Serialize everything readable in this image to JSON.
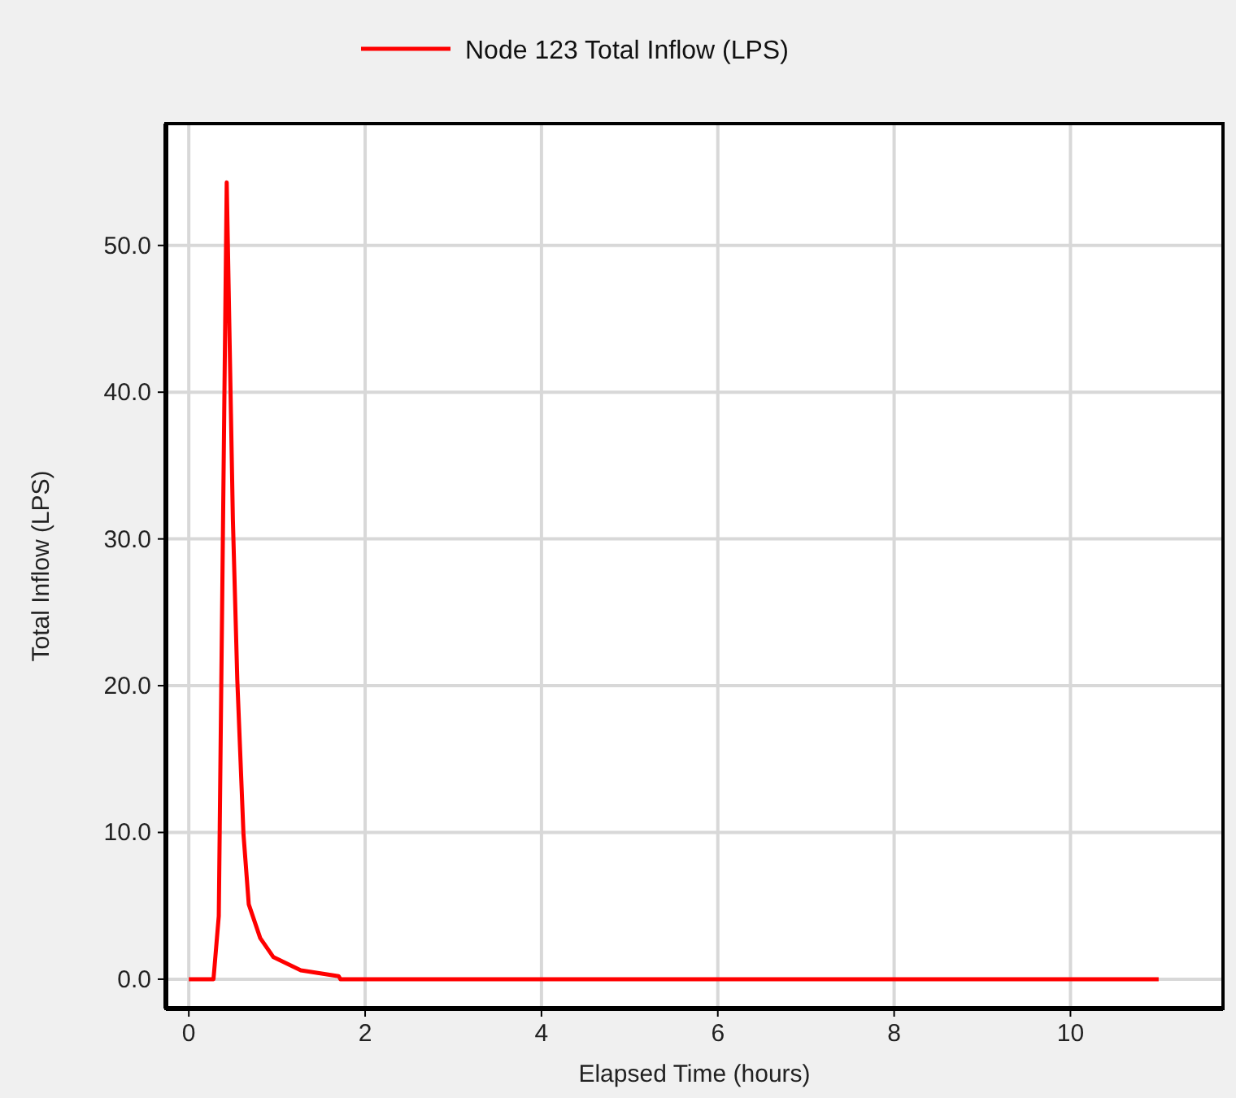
{
  "chart_data": {
    "type": "line",
    "xlabel": "Elapsed Time (hours)",
    "ylabel": "Total Inflow (LPS)",
    "xlim": [
      -0.26,
      11.73
    ],
    "ylim": [
      -2,
      58.3
    ],
    "xticks": [
      0,
      2,
      4,
      6,
      8,
      10
    ],
    "yticks": [
      {
        "value": 0,
        "label": "0.0"
      },
      {
        "value": 10,
        "label": "10.0"
      },
      {
        "value": 20,
        "label": "20.0"
      },
      {
        "value": 30,
        "label": "30.0"
      },
      {
        "value": 40,
        "label": "40.0"
      },
      {
        "value": 50,
        "label": "50.0"
      }
    ],
    "grid": true,
    "legend": "top",
    "line_style": "solid",
    "marker": "none",
    "series": [
      {
        "name": "Node 123 Total Inflow (LPS)",
        "color": "#ff0000",
        "x": [
          0,
          0.28,
          0.34,
          0.43,
          0.5,
          0.55,
          0.62,
          0.68,
          0.81,
          0.96,
          1.27,
          1.7,
          1.72,
          11
        ],
        "values": [
          0,
          0,
          4.3,
          54.3,
          31.3,
          20.4,
          9.9,
          5.1,
          2.8,
          1.5,
          0.6,
          0.2,
          0,
          0
        ]
      }
    ]
  }
}
